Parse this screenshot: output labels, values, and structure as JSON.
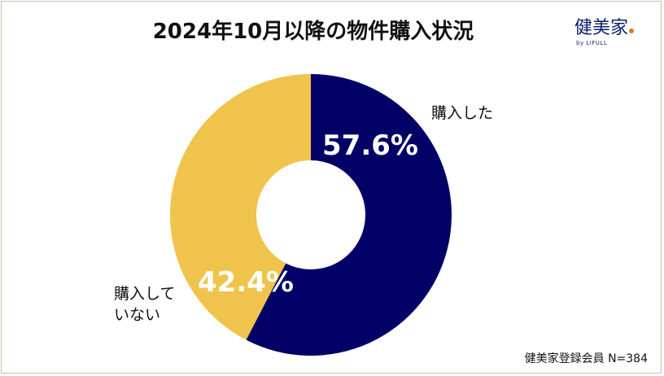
{
  "header": {
    "title": "2024年10月以降の物件購入状況",
    "logo_main": "健美家",
    "logo_sub": "by LIFULL"
  },
  "chart_data": {
    "type": "pie",
    "title": "2024年10月以降の物件購入状況",
    "donut": true,
    "slices": [
      {
        "name": "購入した",
        "value": 57.6,
        "label": "57.6%",
        "color": "#000066"
      },
      {
        "name": "購入していない",
        "value": 42.4,
        "label": "42.4%",
        "color": "#F0C44C"
      }
    ]
  },
  "labels": {
    "bought": "購入した",
    "not_bought": "購入していない"
  },
  "footer": {
    "note": "健美家登録会員 N=384"
  }
}
